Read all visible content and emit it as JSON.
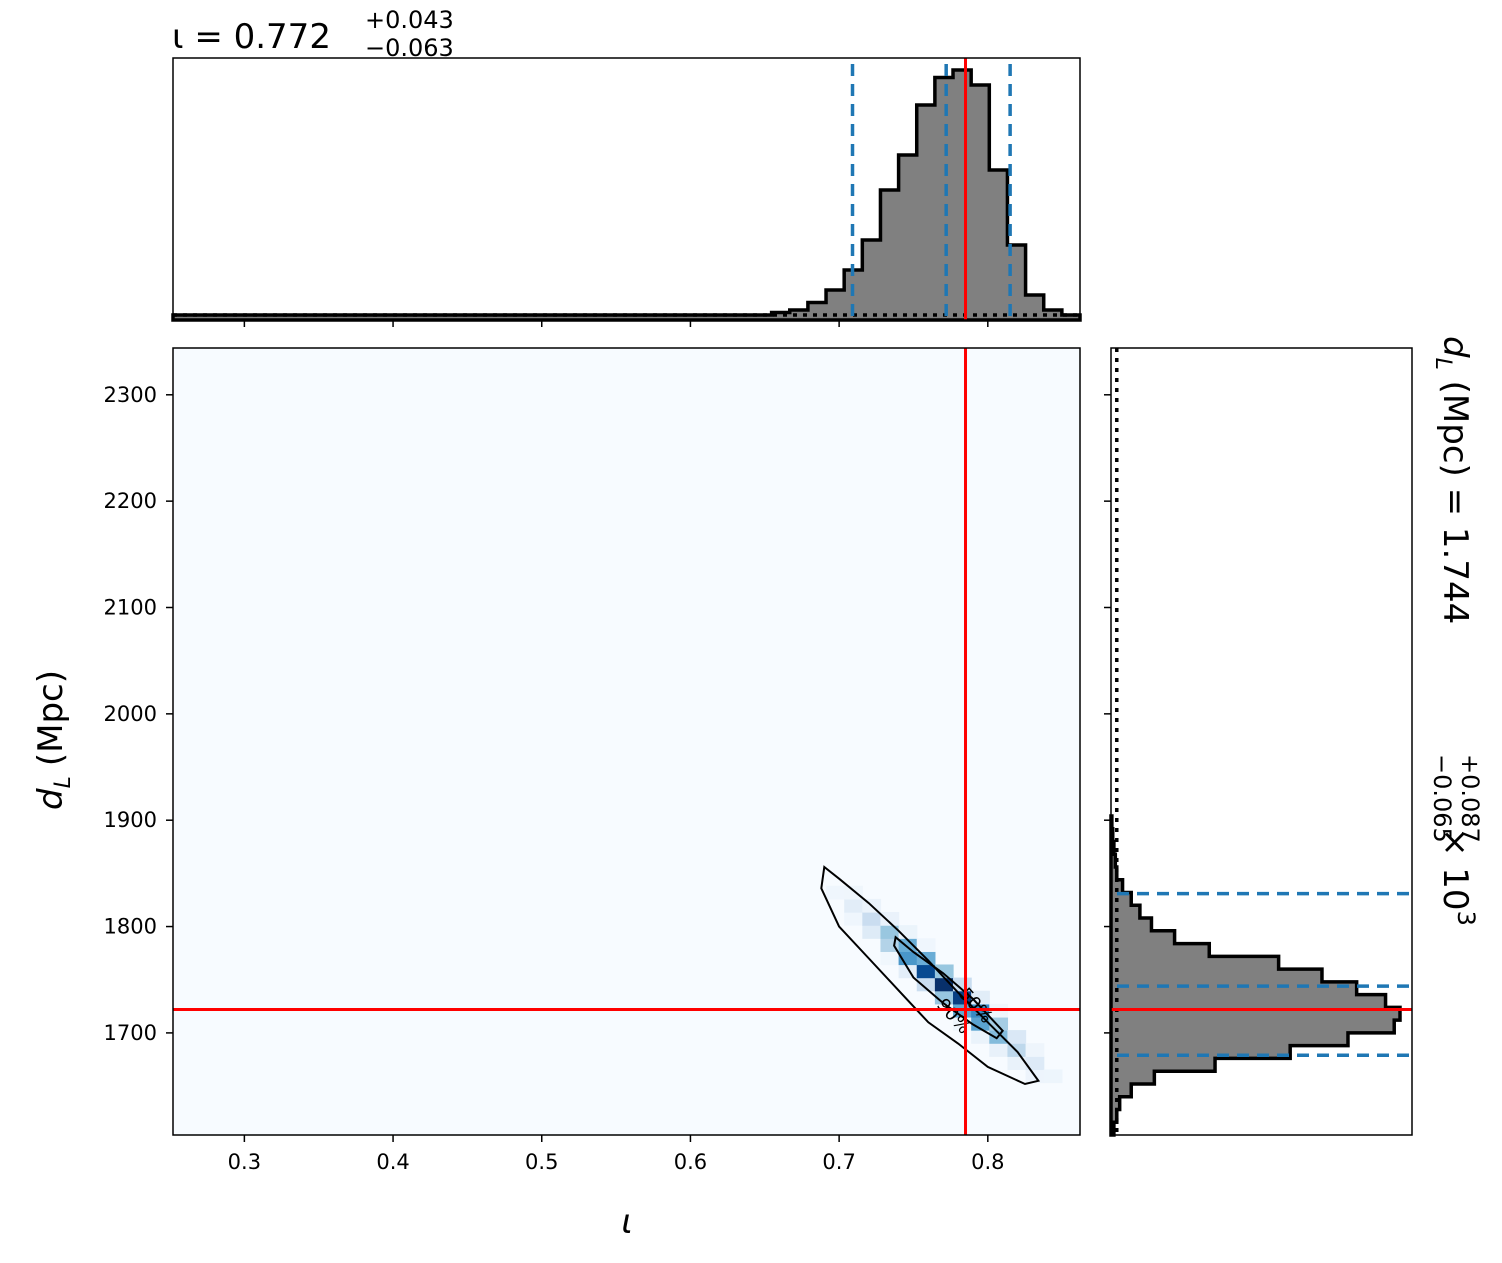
{
  "chart_data": {
    "type": "corner",
    "x_param": {
      "symbol": "ι"
    },
    "y_param": {
      "symbol": "d",
      "subscript": "L",
      "unit": "(Mpc)"
    },
    "xlim": [
      0.252,
      0.862
    ],
    "ylim": [
      1604,
      2344
    ],
    "xticks": [
      "0.3",
      "0.4",
      "0.5",
      "0.6",
      "0.7",
      "0.8"
    ],
    "yticks": [
      "1700",
      "1800",
      "1900",
      "2000",
      "2100",
      "2200",
      "2300"
    ],
    "truth": {
      "x": 0.785,
      "y": 1722,
      "color": "#ff0000"
    },
    "top_marginal": {
      "title_prefix": "ι = ",
      "median": "0.772",
      "plus": "+0.043",
      "minus": "−0.063",
      "quantiles": [
        0.709,
        0.772,
        0.815
      ],
      "hist_edges": [
        0.252,
        0.2642,
        0.2764,
        0.2886,
        0.3008,
        0.313,
        0.3252,
        0.3374,
        0.3496,
        0.3618,
        0.374,
        0.3862,
        0.3984,
        0.4106,
        0.4228,
        0.435,
        0.4472,
        0.4594,
        0.4716,
        0.4838,
        0.496,
        0.5082,
        0.5204,
        0.5326,
        0.5448,
        0.557,
        0.5692,
        0.5814,
        0.5936,
        0.6058,
        0.618,
        0.6302,
        0.6424,
        0.6546,
        0.6668,
        0.679,
        0.6912,
        0.7034,
        0.7156,
        0.7278,
        0.74,
        0.7522,
        0.7644,
        0.7766,
        0.7888,
        0.801,
        0.8132,
        0.8254,
        0.8376,
        0.8498,
        0.862
      ],
      "hist_counts": [
        0.02,
        0.02,
        0.02,
        0.02,
        0.02,
        0.02,
        0.02,
        0.02,
        0.02,
        0.02,
        0.02,
        0.02,
        0.02,
        0.02,
        0.02,
        0.02,
        0.02,
        0.02,
        0.02,
        0.02,
        0.02,
        0.02,
        0.02,
        0.02,
        0.02,
        0.02,
        0.02,
        0.02,
        0.02,
        0.02,
        0.02,
        0.02,
        0.02,
        0.03,
        0.04,
        0.07,
        0.12,
        0.2,
        0.32,
        0.52,
        0.66,
        0.86,
        0.97,
        1.0,
        0.94,
        0.6,
        0.3,
        0.1,
        0.04,
        0.02
      ],
      "prior_level": 0.02,
      "fill": "#808080",
      "quantile_color": "#1f77b4"
    },
    "right_marginal": {
      "title_prefix": "d",
      "title_sub": "L",
      "title_unit": " (Mpc) = ",
      "median": "1.744",
      "plus": "+0.087",
      "minus": "−0.065",
      "multiplier": "× 10",
      "exponent": "3",
      "quantiles": [
        1679,
        1744,
        1831
      ],
      "hist_edges": [
        1604,
        1616,
        1628,
        1640,
        1652,
        1664,
        1676,
        1688,
        1700,
        1712,
        1724,
        1736,
        1748,
        1760,
        1772,
        1784,
        1796,
        1808,
        1820,
        1832,
        1844,
        1856,
        1868,
        1880,
        1892,
        1904
      ],
      "hist_counts": [
        0.01,
        0.02,
        0.03,
        0.07,
        0.15,
        0.36,
        0.62,
        0.82,
        0.98,
        1.0,
        0.95,
        0.85,
        0.73,
        0.58,
        0.34,
        0.22,
        0.14,
        0.1,
        0.07,
        0.04,
        0.02,
        0.015,
        0.01,
        0.006,
        0.003
      ],
      "prior_level": 0.02,
      "fill": "#808080",
      "quantile_color": "#1f77b4"
    },
    "joint": {
      "cmap": "Blues",
      "contour_labels": [
        "90%",
        "50%"
      ],
      "density_center": {
        "x": 0.772,
        "y": 1744
      },
      "contour_90": [
        [
          0.69,
          1856
        ],
        [
          0.7,
          1845
        ],
        [
          0.72,
          1822
        ],
        [
          0.74,
          1796
        ],
        [
          0.76,
          1768
        ],
        [
          0.78,
          1738
        ],
        [
          0.8,
          1710
        ],
        [
          0.82,
          1682
        ],
        [
          0.834,
          1655
        ],
        [
          0.825,
          1652
        ],
        [
          0.8,
          1668
        ],
        [
          0.78,
          1690
        ],
        [
          0.76,
          1710
        ],
        [
          0.74,
          1740
        ],
        [
          0.72,
          1770
        ],
        [
          0.7,
          1800
        ],
        [
          0.688,
          1836
        ]
      ],
      "contour_50": [
        [
          0.738,
          1790
        ],
        [
          0.75,
          1776
        ],
        [
          0.77,
          1756
        ],
        [
          0.79,
          1732
        ],
        [
          0.81,
          1702
        ],
        [
          0.806,
          1695
        ],
        [
          0.79,
          1708
        ],
        [
          0.77,
          1728
        ],
        [
          0.75,
          1752
        ],
        [
          0.737,
          1782
        ]
      ]
    }
  }
}
